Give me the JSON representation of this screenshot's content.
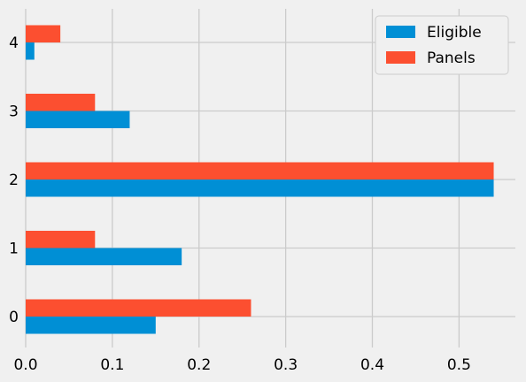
{
  "chart_data": {
    "type": "bar",
    "orientation": "horizontal",
    "categories": [
      "0",
      "1",
      "2",
      "3",
      "4"
    ],
    "series": [
      {
        "name": "Eligible",
        "values": [
          0.15,
          0.18,
          0.54,
          0.12,
          0.01
        ],
        "color": "#008fd5"
      },
      {
        "name": "Panels",
        "values": [
          0.26,
          0.08,
          0.54,
          0.08,
          0.04
        ],
        "color": "#fc4f30"
      }
    ],
    "xticks": [
      "0.0",
      "0.1",
      "0.2",
      "0.3",
      "0.4",
      "0.5"
    ],
    "xlim": [
      0,
      0.565
    ],
    "title": "",
    "xlabel": "",
    "ylabel": "",
    "grid": true,
    "legend_position": "top-right",
    "background": "#f0f0f0",
    "grid_color": "#cbcbcb"
  }
}
